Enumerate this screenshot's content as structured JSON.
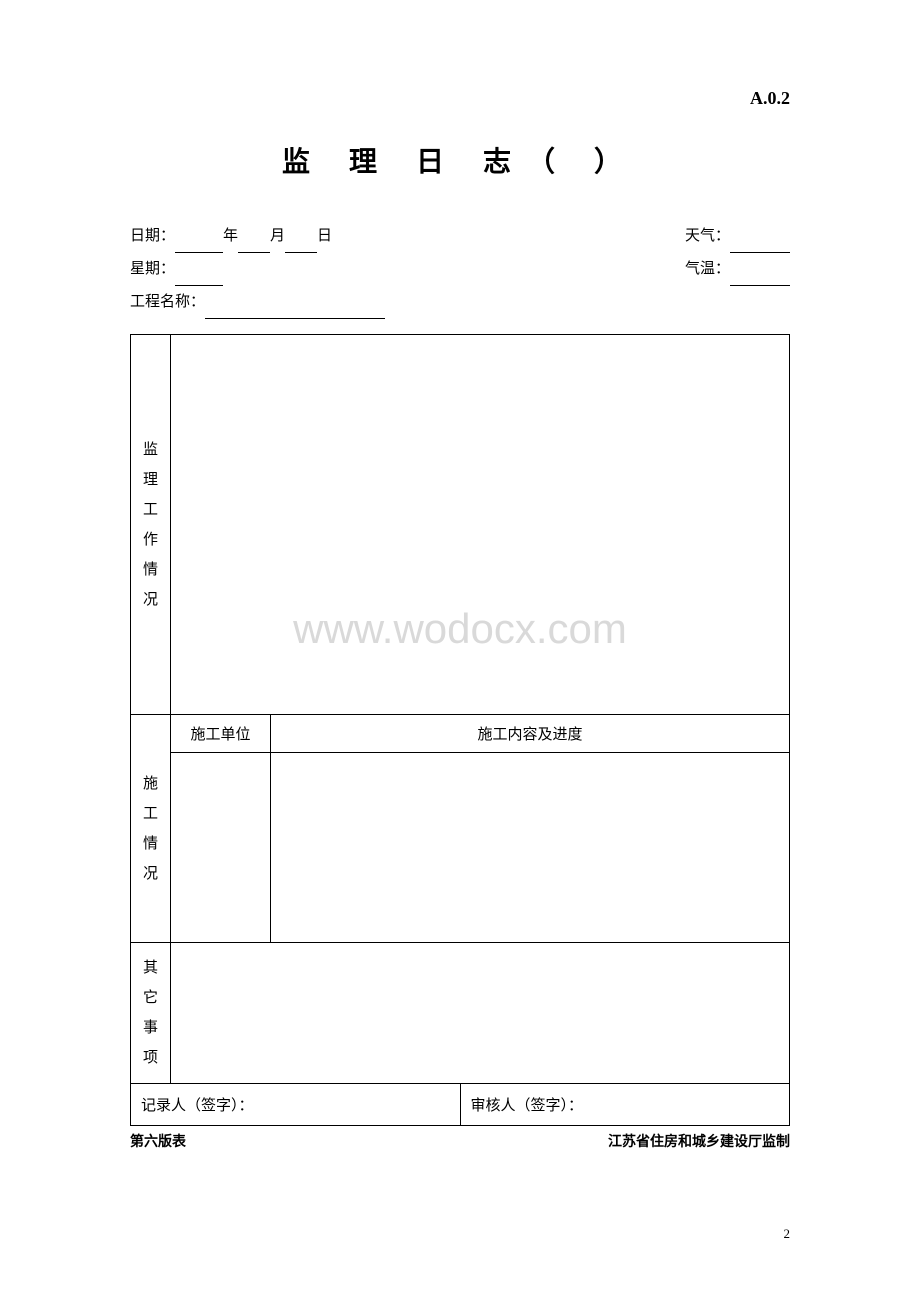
{
  "form_code": "A.0.2",
  "title": "监 理  日 志（    ）",
  "header": {
    "date_label": "日期：",
    "year_suffix": "年",
    "month_suffix": "月",
    "day_suffix": "日",
    "weather_label": "天气：",
    "week_label": "星期：",
    "temperature_label": "气温：",
    "project_label": "工程名称："
  },
  "table": {
    "supervision_label_chars": [
      "监",
      "理",
      "工",
      "作",
      "情",
      "况"
    ],
    "construction_label_chars": [
      "施",
      "工",
      "情",
      "况"
    ],
    "construction_unit_label": "施工单位",
    "construction_content_label": "施工内容及进度",
    "other_label_chars": [
      "其",
      "它",
      "事",
      "项"
    ]
  },
  "signature": {
    "recorder_label": "记录人（签字）：",
    "reviewer_label": "审核人（签字）："
  },
  "footer": {
    "edition_label": "第六版表",
    "authority_label": "江苏省住房和城乡建设厅监制"
  },
  "page_number": "2",
  "watermark": "www.wodocx.com",
  "colors": {
    "text": "#000000",
    "background": "#ffffff",
    "border": "#000000",
    "watermark": "#d9d9d9"
  },
  "typography": {
    "title_fontsize": 28,
    "body_fontsize": 15,
    "footer_fontsize": 14,
    "watermark_fontsize": 42
  }
}
